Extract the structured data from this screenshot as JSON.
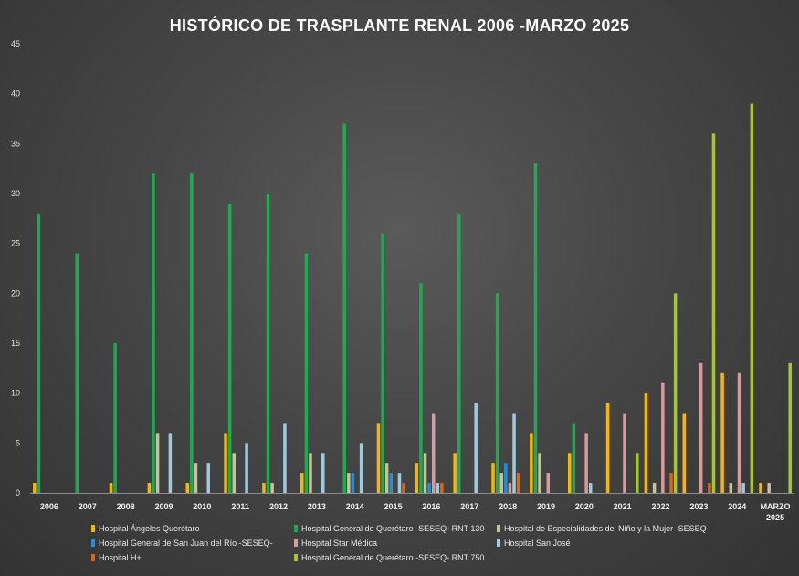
{
  "chart_data": {
    "type": "bar",
    "title": "HISTÓRICO DE TRASPLANTE RENAL 2006 -MARZO 2025",
    "xlabel": "",
    "ylabel": "",
    "ylim": [
      0,
      45
    ],
    "yticks": [
      "0",
      "5",
      "10",
      "15",
      "20",
      "25",
      "30",
      "35",
      "40",
      "45"
    ],
    "grid": false,
    "legend_position": "bottom",
    "categories": [
      "2006",
      "2007",
      "2008",
      "2009",
      "2010",
      "2011",
      "2012",
      "2013",
      "2014",
      "2015",
      "2016",
      "2017",
      "2018",
      "2019",
      "2020",
      "2021",
      "2022",
      "2023",
      "2024",
      "MARZO 2025"
    ],
    "series": [
      {
        "name": "Hospital Ángeles Querétaro",
        "color": "#f5b800",
        "values": [
          1,
          0,
          1,
          1,
          1,
          6,
          1,
          2,
          0,
          7,
          3,
          4,
          3,
          6,
          4,
          9,
          10,
          8,
          12,
          1
        ]
      },
      {
        "name": "Hospital General de Querétaro -SESEQ- RNT 130",
        "color": "#1faa50",
        "values": [
          28,
          24,
          15,
          32,
          32,
          29,
          30,
          24,
          37,
          26,
          21,
          28,
          20,
          33,
          7,
          0,
          0,
          0,
          0,
          0
        ]
      },
      {
        "name": "Hospital de Especialidades del Niño y la Mujer -SESEQ-",
        "color": "#c8c29a",
        "values": [
          0,
          0,
          0,
          6,
          3,
          4,
          1,
          4,
          2,
          3,
          4,
          0,
          2,
          4,
          0,
          0,
          1,
          0,
          1,
          1
        ]
      },
      {
        "name": "Hospital General de San Juan del Río -SESEQ-",
        "color": "#1f8fe0",
        "values": [
          0,
          0,
          0,
          0,
          0,
          0,
          0,
          0,
          2,
          2,
          1,
          0,
          3,
          0,
          0,
          0,
          0,
          0,
          0,
          0
        ]
      },
      {
        "name": "Hospital Star Médica",
        "color": "#d99a9a",
        "values": [
          0,
          0,
          0,
          0,
          0,
          0,
          0,
          0,
          0,
          0,
          8,
          0,
          1,
          2,
          6,
          8,
          11,
          13,
          12,
          0
        ]
      },
      {
        "name": "Hospital San José",
        "color": "#9ccbe0",
        "values": [
          0,
          0,
          0,
          6,
          3,
          5,
          7,
          4,
          5,
          2,
          1,
          9,
          8,
          0,
          1,
          0,
          0,
          0,
          1,
          0
        ]
      },
      {
        "name": "Hospital H+",
        "color": "#d9661c",
        "values": [
          0,
          0,
          0,
          0,
          0,
          0,
          0,
          0,
          0,
          1,
          1,
          0,
          2,
          0,
          0,
          0,
          2,
          1,
          0,
          0
        ]
      },
      {
        "name": "Hospital General de Querétaro -SESEQ- RNT 750",
        "color": "#a6c43a",
        "values": [
          0,
          0,
          0,
          0,
          0,
          0,
          0,
          0,
          0,
          0,
          0,
          0,
          0,
          0,
          0,
          4,
          20,
          36,
          39,
          13
        ]
      }
    ]
  }
}
